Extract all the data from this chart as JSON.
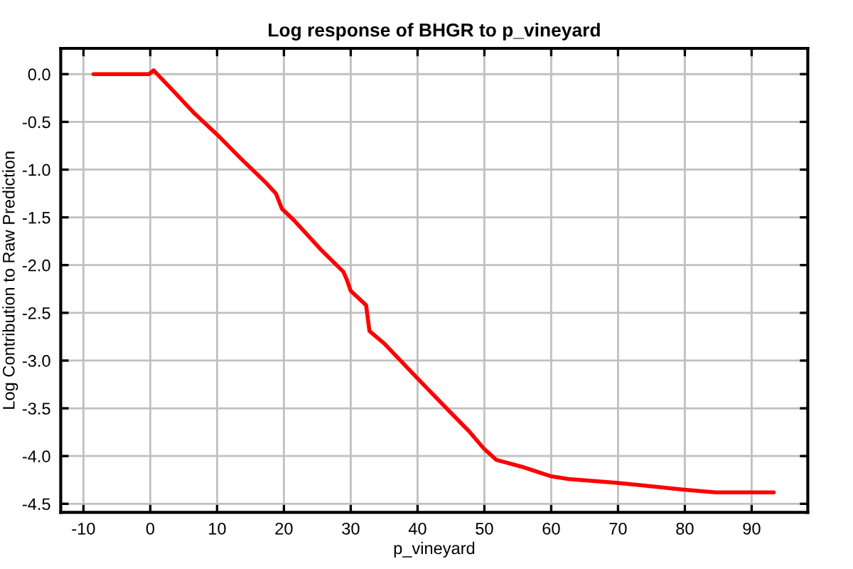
{
  "chart_data": {
    "type": "line",
    "title": "Log response of BHGR to p_vineyard",
    "xlabel": "p_vineyard",
    "ylabel": "Log Contribution to Raw Prediction",
    "series": [
      {
        "color": "#ff0000",
        "x": [
          -8.5,
          -0.2,
          0.5,
          3.5,
          6.6,
          10.1,
          13.5,
          17.2,
          18.8,
          19.7,
          21.5,
          25.7,
          28.9,
          29.4,
          30.0,
          32.3,
          32.8,
          35.0,
          39.9,
          44.9,
          47.7,
          49.9,
          51.8,
          55.5,
          59.9,
          62.6,
          69.7,
          74.0,
          79.6,
          84.6,
          93.3
        ],
        "values": [
          0,
          0,
          0.04,
          -0.18,
          -0.41,
          -0.64,
          -0.88,
          -1.13,
          -1.25,
          -1.41,
          -1.53,
          -1.85,
          -2.07,
          -2.15,
          -2.27,
          -2.42,
          -2.69,
          -2.82,
          -3.18,
          -3.54,
          -3.74,
          -3.92,
          -4.04,
          -4.11,
          -4.21,
          -4.24,
          -4.28,
          -4.31,
          -4.35,
          -4.38,
          -4.38
        ]
      }
    ],
    "xlim": [
      -13.4,
      98.4
    ],
    "ylim": [
      -4.59,
      0.27
    ],
    "xticks": [
      -10,
      0,
      10,
      20,
      30,
      40,
      50,
      60,
      70,
      80,
      90
    ],
    "yticks": [
      {
        "value": 0,
        "label": "0.0"
      },
      {
        "value": -0.5,
        "label": "-0.5"
      },
      {
        "value": -1,
        "label": "-1.0"
      },
      {
        "value": -1.5,
        "label": "-1.5"
      },
      {
        "value": -2,
        "label": "-2.0"
      },
      {
        "value": -2.5,
        "label": "-2.5"
      },
      {
        "value": -3,
        "label": "-3.0"
      },
      {
        "value": -3.5,
        "label": "-3.5"
      },
      {
        "value": -4,
        "label": "-4.0"
      },
      {
        "value": -4.5,
        "label": "-4.5"
      }
    ],
    "grid": true
  }
}
